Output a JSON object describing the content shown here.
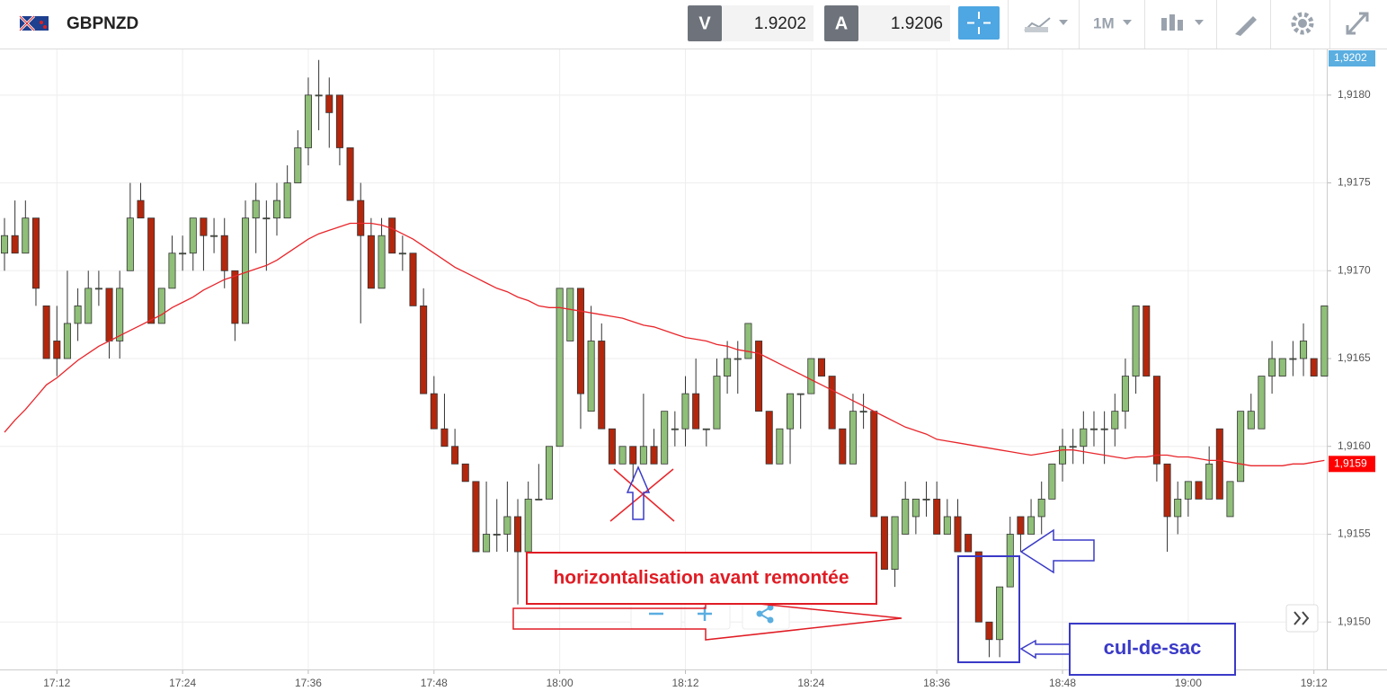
{
  "header": {
    "symbol": "GBPNZD",
    "sell_label": "V",
    "sell_price": 1.9202,
    "buy_label": "A",
    "buy_price": 1.9206,
    "timeframe": "1M"
  },
  "chart_data": {
    "type": "candlestick",
    "categories": [
      null,
      null,
      null,
      null,
      null,
      "17:12",
      null,
      null,
      null,
      null,
      null,
      null,
      null,
      null,
      null,
      null,
      null,
      "17:24",
      null,
      null,
      null,
      null,
      null,
      null,
      null,
      null,
      null,
      null,
      null,
      "17:36",
      null,
      null,
      null,
      null,
      null,
      null,
      null,
      null,
      null,
      null,
      null,
      "17:48",
      null,
      null,
      null,
      null,
      null,
      null,
      null,
      null,
      null,
      null,
      null,
      "18:00",
      null,
      null,
      null,
      null,
      null,
      null,
      null,
      null,
      null,
      null,
      null,
      "18:12",
      null,
      null,
      null,
      null,
      null,
      null,
      null,
      null,
      null,
      null,
      null,
      "18:24",
      null,
      null,
      null,
      null,
      null,
      null,
      null,
      null,
      null,
      null,
      null,
      "18:36",
      null,
      null,
      null,
      null,
      null,
      null,
      null,
      null,
      null,
      null,
      null,
      "18:48",
      null,
      null,
      null,
      null,
      null,
      null,
      null,
      null,
      null,
      null,
      null,
      "19:00",
      null,
      null,
      null,
      null,
      null,
      null,
      null,
      null,
      null,
      null,
      null,
      "19:12",
      null
    ],
    "open": [
      1.9171,
      1.9172,
      1.9171,
      1.9173,
      1.9168,
      1.9166,
      1.9165,
      1.9167,
      1.9167,
      1.9169,
      1.9169,
      1.9166,
      1.917,
      1.9174,
      1.9173,
      1.9167,
      1.9169,
      1.9171,
      1.9171,
      1.9173,
      1.9172,
      1.9172,
      1.917,
      1.9167,
      1.9173,
      1.9173,
      1.9173,
      1.9173,
      1.9175,
      1.9177,
      1.918,
      1.918,
      1.918,
      1.9177,
      1.9174,
      1.9172,
      1.9169,
      1.9173,
      1.9171,
      1.9171,
      1.9168,
      1.9163,
      1.9161,
      1.916,
      1.9159,
      1.9158,
      1.9154,
      1.9155,
      1.9155,
      1.9156,
      1.9154,
      1.9157,
      1.9157,
      1.916,
      1.9166,
      1.9169,
      1.9162,
      1.9166,
      1.9161,
      1.9159,
      1.916,
      1.9159,
      1.916,
      1.9159,
      1.9161,
      1.9161,
      1.9163,
      1.9161,
      1.9161,
      1.9164,
      1.9165,
      1.9165,
      1.9166,
      1.9162,
      1.9159,
      1.9161,
      1.9163,
      1.9163,
      1.9165,
      1.9164,
      1.9161,
      1.9159,
      1.9162,
      1.9162,
      1.9156,
      1.9153,
      1.9155,
      1.9156,
      1.9157,
      1.9157,
      1.9155,
      1.9156,
      1.9155,
      1.9154,
      1.915,
      1.9149,
      1.9152,
      1.9156,
      1.9155,
      1.9156,
      1.9157,
      1.9159,
      1.916,
      1.916,
      1.9161,
      1.9161,
      1.9161,
      1.9162,
      1.9164,
      1.9168,
      1.9164,
      1.9159,
      1.9156,
      1.9157,
      1.9158,
      1.9157,
      1.9161,
      1.9156,
      1.9158,
      1.9161,
      1.9161,
      1.9164,
      1.9164,
      1.9165,
      1.9165,
      1.9165,
      1.9164
    ],
    "high": [
      1.9173,
      1.9174,
      1.9174,
      1.9173,
      1.9168,
      1.9168,
      1.917,
      1.9169,
      1.917,
      1.917,
      1.9169,
      1.917,
      1.9175,
      1.9175,
      1.9173,
      1.9169,
      1.9172,
      1.9172,
      1.9173,
      1.9173,
      1.9173,
      1.9173,
      1.917,
      1.9174,
      1.9175,
      1.9174,
      1.9175,
      1.9176,
      1.9178,
      1.9181,
      1.9182,
      1.9181,
      1.918,
      1.9177,
      1.9175,
      1.9173,
      1.9173,
      1.9173,
      1.9172,
      1.9171,
      1.9169,
      1.9164,
      1.9163,
      1.9161,
      1.9159,
      1.9158,
      1.9158,
      1.9157,
      1.9158,
      1.9157,
      1.9158,
      1.9159,
      1.916,
      1.9169,
      1.9169,
      1.9169,
      1.9168,
      1.9167,
      1.9161,
      1.916,
      1.916,
      1.9163,
      1.9161,
      1.9162,
      1.9162,
      1.9164,
      1.9165,
      1.9161,
      1.9165,
      1.9166,
      1.9166,
      1.9167,
      1.9166,
      1.9162,
      1.9161,
      1.9163,
      1.9163,
      1.9165,
      1.9165,
      1.9164,
      1.9161,
      1.9163,
      1.9163,
      1.9162,
      1.9156,
      1.9156,
      1.9158,
      1.9157,
      1.9158,
      1.9158,
      1.9157,
      1.9157,
      1.9155,
      1.9154,
      1.915,
      1.9152,
      1.9156,
      1.9156,
      1.9157,
      1.9158,
      1.9159,
      1.9161,
      1.9161,
      1.9162,
      1.9162,
      1.9162,
      1.9163,
      1.9165,
      1.9168,
      1.9168,
      1.9164,
      1.9159,
      1.9158,
      1.9158,
      1.9158,
      1.916,
      1.9161,
      1.9158,
      1.9162,
      1.9163,
      1.9164,
      1.9166,
      1.9165,
      1.9166,
      1.9167,
      1.9165,
      1.9168
    ],
    "low": [
      1.917,
      1.9171,
      1.9171,
      1.9168,
      1.9165,
      1.9164,
      1.9165,
      1.9166,
      1.9167,
      1.9168,
      1.9165,
      1.9165,
      1.917,
      1.9173,
      1.9167,
      1.9167,
      1.9169,
      1.917,
      1.917,
      1.917,
      1.9171,
      1.9169,
      1.9166,
      1.9167,
      1.9171,
      1.917,
      1.9172,
      1.9173,
      1.9175,
      1.9176,
      1.9178,
      1.9177,
      1.9176,
      1.9174,
      1.9167,
      1.9169,
      1.9169,
      1.9171,
      1.917,
      1.9168,
      1.9163,
      1.9161,
      1.916,
      1.9159,
      1.9158,
      1.9154,
      1.9154,
      1.9154,
      1.9154,
      1.9151,
      1.9154,
      1.9157,
      1.9157,
      1.916,
      1.9166,
      1.9161,
      1.9162,
      1.9161,
      1.9159,
      1.9159,
      1.9158,
      1.9159,
      1.9159,
      1.9159,
      1.916,
      1.916,
      1.9161,
      1.916,
      1.9161,
      1.9163,
      1.9163,
      1.9165,
      1.9162,
      1.9159,
      1.9159,
      1.9159,
      1.9161,
      1.9163,
      1.9164,
      1.9161,
      1.9159,
      1.9159,
      1.9161,
      1.9156,
      1.9153,
      1.9152,
      1.9155,
      1.9155,
      1.9156,
      1.9155,
      1.9155,
      1.9154,
      1.9154,
      1.915,
      1.9148,
      1.9148,
      1.9152,
      1.9154,
      1.9155,
      1.9155,
      1.9157,
      1.9158,
      1.9159,
      1.9159,
      1.916,
      1.9159,
      1.916,
      1.9161,
      1.9163,
      1.9164,
      1.9158,
      1.9154,
      1.9155,
      1.9156,
      1.9157,
      1.9157,
      1.9157,
      1.9156,
      1.9158,
      1.9161,
      1.9161,
      1.9163,
      1.9164,
      1.9164,
      1.9164,
      1.9164,
      1.9164
    ],
    "close": [
      1.9172,
      1.9171,
      1.9173,
      1.9169,
      1.9165,
      1.9165,
      1.9167,
      1.9168,
      1.9169,
      1.9169,
      1.9166,
      1.9169,
      1.9173,
      1.9173,
      1.9167,
      1.9169,
      1.9171,
      1.9171,
      1.9173,
      1.9172,
      1.9172,
      1.917,
      1.9167,
      1.9173,
      1.9174,
      1.9173,
      1.9174,
      1.9175,
      1.9177,
      1.918,
      1.918,
      1.9179,
      1.9177,
      1.9174,
      1.9172,
      1.9169,
      1.9172,
      1.9171,
      1.9171,
      1.9168,
      1.9163,
      1.9161,
      1.916,
      1.9159,
      1.9158,
      1.9154,
      1.9155,
      1.9155,
      1.9156,
      1.9154,
      1.9157,
      1.9157,
      1.916,
      1.9169,
      1.9169,
      1.9163,
      1.9166,
      1.9161,
      1.9159,
      1.916,
      1.9159,
      1.916,
      1.9159,
      1.9162,
      1.9161,
      1.9163,
      1.9161,
      1.9161,
      1.9164,
      1.9165,
      1.9165,
      1.9167,
      1.9162,
      1.9159,
      1.9161,
      1.9163,
      1.9163,
      1.9165,
      1.9164,
      1.9161,
      1.9159,
      1.9162,
      1.9162,
      1.9156,
      1.9153,
      1.9156,
      1.9157,
      1.9157,
      1.9157,
      1.9155,
      1.9156,
      1.9154,
      1.9154,
      1.915,
      1.9149,
      1.9152,
      1.9155,
      1.9155,
      1.9156,
      1.9157,
      1.9159,
      1.916,
      1.916,
      1.9161,
      1.9161,
      1.9161,
      1.9162,
      1.9164,
      1.9168,
      1.9164,
      1.9159,
      1.9156,
      1.9157,
      1.9158,
      1.9157,
      1.9159,
      1.9157,
      1.9158,
      1.9162,
      1.9162,
      1.9164,
      1.9165,
      1.9165,
      1.9165,
      1.9166,
      1.9164,
      1.9168
    ],
    "up_color": "#8fbf78",
    "down_color": "#b3270d",
    "moving_average": {
      "color": "#e8262b",
      "values": [
        1.91608,
        1.91615,
        1.91621,
        1.91628,
        1.91635,
        1.91639,
        1.91644,
        1.91649,
        1.91653,
        1.91657,
        1.9166,
        1.91663,
        1.91666,
        1.91669,
        1.91672,
        1.91675,
        1.91679,
        1.91682,
        1.91685,
        1.91689,
        1.91692,
        1.91695,
        1.91697,
        1.91699,
        1.91701,
        1.91703,
        1.91706,
        1.9171,
        1.91714,
        1.91718,
        1.91721,
        1.91723,
        1.91725,
        1.91727,
        1.91727,
        1.91727,
        1.91726,
        1.91724,
        1.91721,
        1.91718,
        1.91714,
        1.9171,
        1.91706,
        1.91702,
        1.91699,
        1.91696,
        1.91693,
        1.9169,
        1.91688,
        1.91685,
        1.91683,
        1.9168,
        1.91679,
        1.91679,
        1.91678,
        1.91677,
        1.91676,
        1.91675,
        1.91674,
        1.91673,
        1.91671,
        1.91669,
        1.91668,
        1.91666,
        1.91664,
        1.91662,
        1.91661,
        1.9166,
        1.91658,
        1.91657,
        1.91655,
        1.91654,
        1.91653,
        1.9165,
        1.91647,
        1.91644,
        1.91641,
        1.91638,
        1.91635,
        1.91632,
        1.91629,
        1.91626,
        1.91623,
        1.9162,
        1.91617,
        1.91614,
        1.91611,
        1.91609,
        1.91607,
        1.91604,
        1.91603,
        1.91602,
        1.91601,
        1.916,
        1.91599,
        1.91598,
        1.91597,
        1.91596,
        1.91595,
        1.91596,
        1.91597,
        1.91598,
        1.91598,
        1.91597,
        1.91596,
        1.91595,
        1.91594,
        1.91593,
        1.91594,
        1.91594,
        1.91595,
        1.91595,
        1.91594,
        1.91594,
        1.91593,
        1.91592,
        1.91592,
        1.91591,
        1.9159,
        1.91589,
        1.91589,
        1.91589,
        1.91589,
        1.9159,
        1.9159,
        1.91591,
        1.91592
      ]
    },
    "ylim": [
      1.91473,
      1.91826
    ],
    "yticks": [
      {
        "value": 1.915,
        "label": "1,9150"
      },
      {
        "value": 1.9155,
        "label": "1,9155"
      },
      {
        "value": 1.916,
        "label": "1,9160"
      },
      {
        "value": 1.9165,
        "label": "1,9165"
      },
      {
        "value": 1.917,
        "label": "1,9170"
      },
      {
        "value": 1.9175,
        "label": "1,9175"
      },
      {
        "value": 1.918,
        "label": "1,9180"
      }
    ],
    "grid": true,
    "price_markers": [
      {
        "value": 1.9202,
        "label": "1,9202",
        "color": "#5aaee0"
      },
      {
        "value": 1.9159,
        "label": "1,9159",
        "color": "#ff0000"
      }
    ],
    "annotations": [
      "horizontalisation avant remontée",
      "cul-de-sac"
    ]
  }
}
